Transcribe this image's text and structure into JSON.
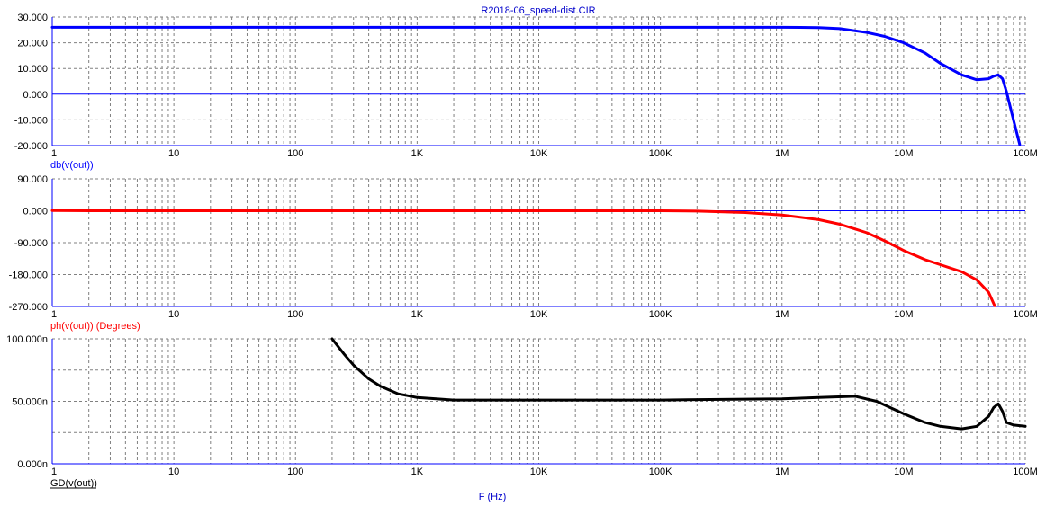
{
  "title": "R2018-06_speed-dist.CIR",
  "x_axis_label": "F (Hz)",
  "x_tick_labels": [
    "1",
    "10",
    "100",
    "1K",
    "10K",
    "100K",
    "1M",
    "10M",
    "100M"
  ],
  "colors": {
    "title": "#0000cc",
    "axis": "#0000ff",
    "grid": "#808080",
    "magnitude": "#0000ff",
    "phase": "#ff0000",
    "group_delay": "#000000",
    "x_axis_label": "#0000cc"
  },
  "chart_data": [
    {
      "type": "line",
      "ylabel": "db(v(out))",
      "xscale": "log",
      "xlim": [
        1,
        100000000
      ],
      "ylim": [
        -20,
        30
      ],
      "y_tick_labels": [
        "30.000",
        "20.000",
        "10.000",
        "0.000",
        "-10.000",
        "-20.000"
      ],
      "y_ticks": [
        30,
        20,
        10,
        0,
        -10,
        -20
      ],
      "grid": true,
      "series": [
        {
          "x": [
            1,
            1000,
            100000,
            1000000,
            2000000,
            3000000,
            5000000,
            7000000,
            10000000,
            15000000,
            20000000,
            30000000,
            40000000,
            50000000,
            55000000,
            60000000,
            65000000,
            70000000,
            80000000,
            90000000
          ],
          "y": [
            26,
            26,
            26,
            26,
            25.9,
            25.5,
            24,
            22.5,
            20,
            16,
            12,
            7.5,
            5.6,
            6,
            7,
            7.5,
            6,
            1,
            -10,
            -19.5
          ]
        }
      ]
    },
    {
      "type": "line",
      "ylabel": "ph(v(out)) (Degrees)",
      "xscale": "log",
      "xlim": [
        1,
        100000000
      ],
      "ylim": [
        -270,
        90
      ],
      "y_tick_labels": [
        "90.000",
        "0.000",
        "-90.000",
        "-180.000",
        "-270.000"
      ],
      "y_ticks": [
        90,
        0,
        -90,
        -180,
        -270
      ],
      "grid": true,
      "series": [
        {
          "x": [
            1,
            2,
            100000,
            200000,
            500000,
            1000000,
            2000000,
            3000000,
            5000000,
            7000000,
            10000000,
            15000000,
            20000000,
            30000000,
            40000000,
            50000000,
            56000000
          ],
          "y": [
            0.5,
            0,
            0,
            -1,
            -5,
            -12,
            -25,
            -38,
            -62,
            -85,
            -112,
            -138,
            -152,
            -172,
            -195,
            -230,
            -268
          ]
        }
      ]
    },
    {
      "type": "line",
      "ylabel": "GD(v(out))",
      "xscale": "log",
      "xlim": [
        1,
        100000000
      ],
      "ylim": [
        0,
        100
      ],
      "y_tick_labels": [
        "100.000n",
        "50.000n",
        "0.000n"
      ],
      "y_ticks": [
        100,
        50,
        0
      ],
      "grid": true,
      "series": [
        {
          "x": [
            200,
            250,
            300,
            400,
            500,
            700,
            1000,
            2000,
            10000,
            100000,
            1000000,
            2000000,
            4000000,
            6000000,
            10000000,
            15000000,
            20000000,
            30000000,
            40000000,
            50000000,
            55000000,
            60000000,
            65000000,
            70000000,
            80000000,
            100000000
          ],
          "y": [
            100,
            88,
            79,
            68,
            62,
            56,
            53,
            51,
            51,
            51,
            52,
            53,
            54,
            50,
            40,
            33,
            30,
            28,
            30,
            38,
            45,
            48,
            42,
            33,
            31,
            30
          ]
        }
      ]
    }
  ]
}
